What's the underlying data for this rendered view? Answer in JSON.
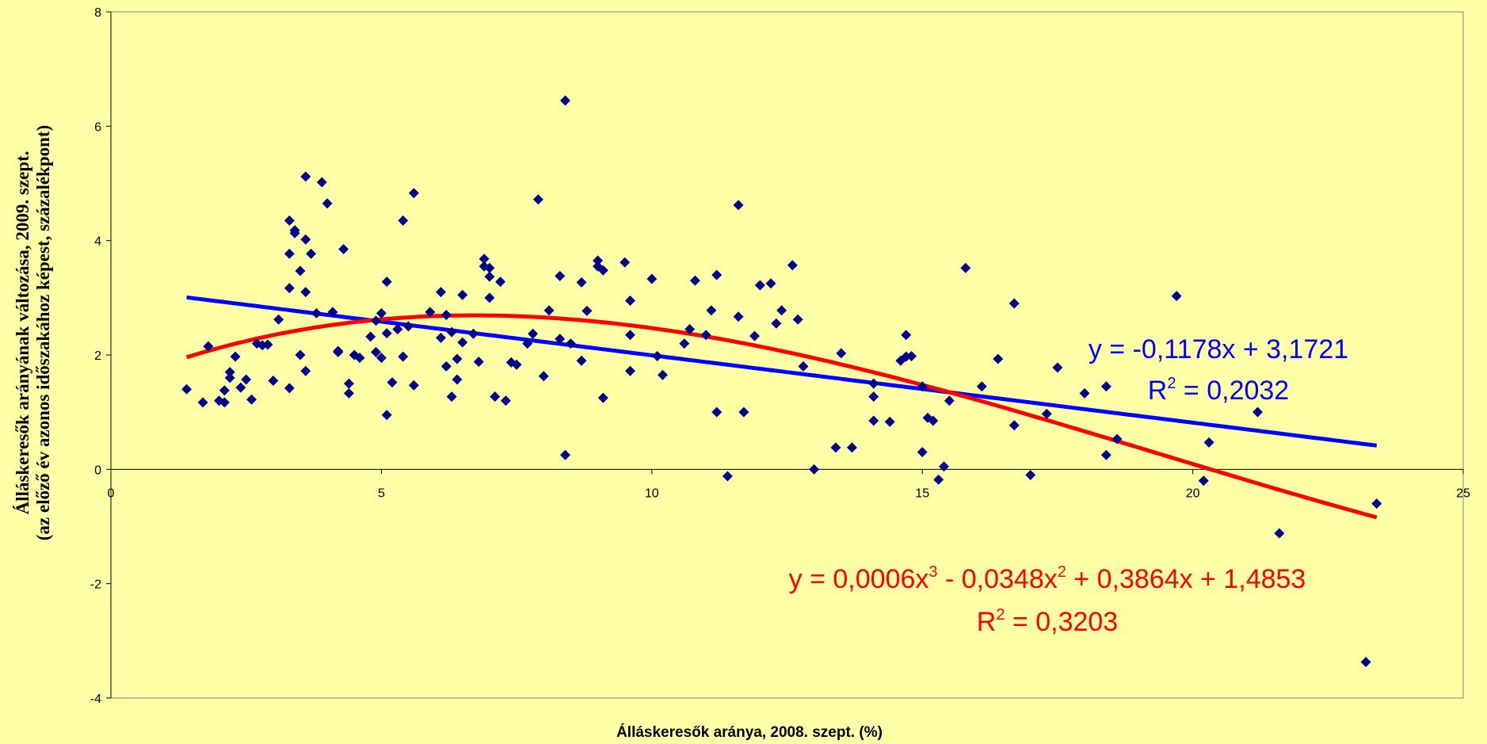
{
  "chart_data": {
    "type": "scatter",
    "xlabel": "Álláskeresők aránya, 2008. szept. (%)",
    "ylabel": "Álláskeresők arányának változása, 2009. szept.",
    "ylabel_line2": "(az előző év azonos időszakához képest, százalékpont)",
    "xlim": [
      0,
      25
    ],
    "ylim": [
      -4,
      8
    ],
    "x_ticks": [
      0,
      5,
      10,
      15,
      20,
      25
    ],
    "y_ticks": [
      -4,
      -2,
      0,
      2,
      4,
      6,
      8
    ],
    "grid": false,
    "colors": {
      "background": "#FFFFA8",
      "points": "#00008B",
      "linear_trend": "#0000FF",
      "poly_trend": "#FF0000"
    },
    "series": [
      {
        "marker": "diamond",
        "points": [
          [
            1.4,
            1.4
          ],
          [
            1.7,
            1.17
          ],
          [
            1.8,
            2.15
          ],
          [
            2.0,
            1.2
          ],
          [
            2.1,
            1.38
          ],
          [
            2.1,
            1.17
          ],
          [
            2.2,
            1.6
          ],
          [
            2.2,
            1.7
          ],
          [
            2.3,
            1.97
          ],
          [
            2.4,
            1.43
          ],
          [
            2.5,
            1.57
          ],
          [
            2.6,
            1.22
          ],
          [
            2.7,
            2.2
          ],
          [
            2.8,
            2.17
          ],
          [
            2.9,
            2.18
          ],
          [
            3.0,
            1.55
          ],
          [
            3.1,
            2.62
          ],
          [
            3.3,
            1.42
          ],
          [
            3.3,
            3.17
          ],
          [
            3.3,
            3.77
          ],
          [
            3.3,
            4.35
          ],
          [
            3.4,
            4.13
          ],
          [
            3.4,
            4.18
          ],
          [
            3.5,
            3.47
          ],
          [
            3.5,
            2.0
          ],
          [
            3.6,
            1.72
          ],
          [
            3.6,
            4.02
          ],
          [
            3.6,
            3.1
          ],
          [
            3.6,
            5.12
          ],
          [
            3.7,
            3.77
          ],
          [
            3.8,
            2.73
          ],
          [
            3.9,
            5.02
          ],
          [
            4.0,
            4.65
          ],
          [
            4.1,
            2.75
          ],
          [
            4.2,
            2.07
          ],
          [
            4.2,
            2.05
          ],
          [
            4.3,
            3.85
          ],
          [
            4.4,
            1.33
          ],
          [
            4.4,
            1.5
          ],
          [
            4.5,
            2.0
          ],
          [
            4.6,
            1.95
          ],
          [
            4.8,
            2.32
          ],
          [
            4.9,
            2.6
          ],
          [
            4.9,
            2.05
          ],
          [
            5.0,
            2.73
          ],
          [
            5.0,
            1.95
          ],
          [
            5.1,
            2.38
          ],
          [
            5.1,
            3.28
          ],
          [
            5.1,
            0.95
          ],
          [
            5.2,
            1.52
          ],
          [
            5.3,
            2.45
          ],
          [
            5.4,
            4.35
          ],
          [
            5.4,
            1.97
          ],
          [
            5.5,
            2.5
          ],
          [
            5.6,
            1.47
          ],
          [
            5.6,
            4.83
          ],
          [
            5.9,
            2.75
          ],
          [
            6.1,
            3.1
          ],
          [
            6.1,
            2.3
          ],
          [
            6.2,
            1.8
          ],
          [
            6.2,
            2.7
          ],
          [
            6.3,
            2.4
          ],
          [
            6.3,
            1.27
          ],
          [
            6.4,
            1.57
          ],
          [
            6.4,
            1.93
          ],
          [
            6.5,
            3.05
          ],
          [
            6.5,
            2.22
          ],
          [
            6.7,
            2.37
          ],
          [
            6.8,
            1.88
          ],
          [
            6.9,
            3.55
          ],
          [
            6.9,
            3.68
          ],
          [
            7.0,
            3.52
          ],
          [
            7.0,
            3.37
          ],
          [
            7.0,
            3.0
          ],
          [
            7.1,
            1.27
          ],
          [
            7.2,
            3.28
          ],
          [
            7.3,
            1.2
          ],
          [
            7.4,
            1.87
          ],
          [
            7.5,
            1.83
          ],
          [
            7.7,
            2.2
          ],
          [
            7.8,
            2.37
          ],
          [
            7.9,
            4.72
          ],
          [
            8.0,
            1.63
          ],
          [
            8.1,
            2.78
          ],
          [
            8.3,
            2.28
          ],
          [
            8.3,
            3.38
          ],
          [
            8.4,
            6.45
          ],
          [
            8.4,
            0.25
          ],
          [
            8.5,
            2.2
          ],
          [
            8.7,
            1.9
          ],
          [
            8.7,
            3.27
          ],
          [
            8.8,
            2.77
          ],
          [
            9.0,
            3.65
          ],
          [
            9.0,
            3.55
          ],
          [
            9.1,
            1.25
          ],
          [
            9.1,
            3.48
          ],
          [
            9.5,
            3.62
          ],
          [
            9.6,
            1.72
          ],
          [
            9.6,
            2.95
          ],
          [
            9.6,
            2.35
          ],
          [
            10.0,
            3.33
          ],
          [
            10.1,
            1.98
          ],
          [
            10.2,
            1.65
          ],
          [
            10.6,
            2.2
          ],
          [
            10.7,
            2.45
          ],
          [
            10.8,
            3.3
          ],
          [
            11.0,
            2.35
          ],
          [
            11.1,
            2.78
          ],
          [
            11.2,
            3.4
          ],
          [
            11.2,
            1.0
          ],
          [
            11.4,
            -0.12
          ],
          [
            11.6,
            2.67
          ],
          [
            11.6,
            4.62
          ],
          [
            11.7,
            1.0
          ],
          [
            11.9,
            2.33
          ],
          [
            12.0,
            3.22
          ],
          [
            12.2,
            3.25
          ],
          [
            12.3,
            2.55
          ],
          [
            12.4,
            2.78
          ],
          [
            12.6,
            3.57
          ],
          [
            12.7,
            2.62
          ],
          [
            12.8,
            1.8
          ],
          [
            13.0,
            0.0
          ],
          [
            13.4,
            0.38
          ],
          [
            13.5,
            2.03
          ],
          [
            13.7,
            0.38
          ],
          [
            14.1,
            1.5
          ],
          [
            14.1,
            1.27
          ],
          [
            14.1,
            0.85
          ],
          [
            14.4,
            0.83
          ],
          [
            14.6,
            1.9
          ],
          [
            14.7,
            1.97
          ],
          [
            14.7,
            2.35
          ],
          [
            14.8,
            1.98
          ],
          [
            15.0,
            1.45
          ],
          [
            15.0,
            0.3
          ],
          [
            15.1,
            0.9
          ],
          [
            15.2,
            0.85
          ],
          [
            15.3,
            -0.18
          ],
          [
            15.4,
            0.05
          ],
          [
            15.5,
            1.2
          ],
          [
            15.8,
            3.52
          ],
          [
            16.1,
            1.45
          ],
          [
            16.4,
            1.93
          ],
          [
            16.7,
            2.9
          ],
          [
            16.7,
            0.77
          ],
          [
            17.0,
            -0.1
          ],
          [
            17.3,
            0.97
          ],
          [
            17.5,
            1.78
          ],
          [
            18.0,
            1.33
          ],
          [
            18.4,
            1.45
          ],
          [
            18.4,
            0.25
          ],
          [
            18.6,
            0.53
          ],
          [
            19.7,
            3.03
          ],
          [
            20.2,
            -0.2
          ],
          [
            20.3,
            0.47
          ],
          [
            21.2,
            1.0
          ],
          [
            21.6,
            -1.12
          ],
          [
            23.2,
            -3.37
          ],
          [
            23.4,
            -0.6
          ]
        ]
      }
    ],
    "trendlines": [
      {
        "kind": "linear",
        "equation": "y = -0,1178x + 3,1721",
        "r2": "R² = 0,2032",
        "slope": -0.1178,
        "intercept": 3.1721,
        "x_range": [
          1.4,
          23.4
        ]
      },
      {
        "kind": "poly3",
        "equation": "y = 0,0006x³ - 0,0348x² + 0,3864x + 1,4853",
        "r2": "R² = 0,3203",
        "coefficients": [
          0.0006,
          -0.0348,
          0.3864,
          1.4853
        ],
        "x_range": [
          1.4,
          23.4
        ]
      }
    ],
    "equation_labels": {
      "linear_eq_pre": "y = -0,1178x + 3,1721",
      "linear_r2_pre": "R",
      "linear_r2_sup": "2",
      "linear_r2_post": " = 0,2032",
      "poly_eq_a": "y = 0,0006x",
      "poly_eq_sup1": "3",
      "poly_eq_b": " - 0,0348x",
      "poly_eq_sup2": "2",
      "poly_eq_c": " + 0,3864x + 1,4853",
      "poly_r2_pre": "R",
      "poly_r2_sup": "2",
      "poly_r2_post": " = 0,3203"
    }
  }
}
